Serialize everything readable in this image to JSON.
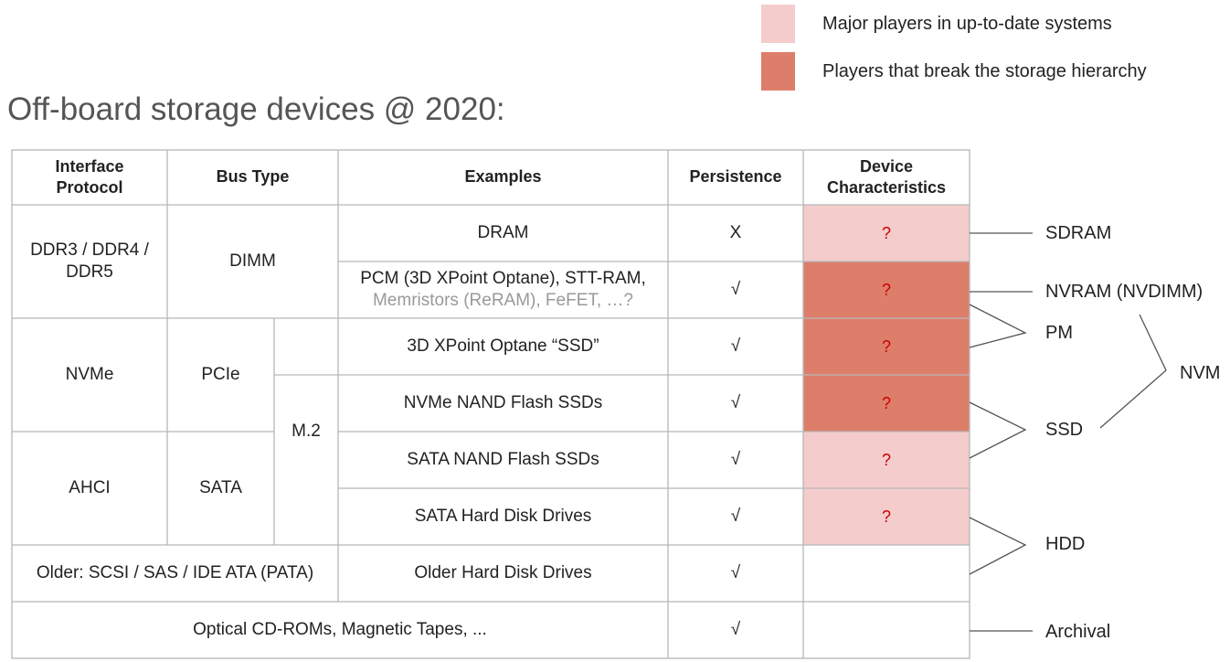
{
  "legend": {
    "items": [
      {
        "label": "Major players in up-to-date systems",
        "color": "#f4cccc"
      },
      {
        "label": "Players that break the storage hierarchy",
        "color": "#dd7e6b"
      }
    ]
  },
  "title": "Off-board storage devices @ 2020:",
  "table": {
    "headers": {
      "interface": "Interface Protocol",
      "bus": "Bus Type",
      "examples": "Examples",
      "persistence": "Persistence",
      "device": "Device Characteristics"
    },
    "interface": {
      "ddr": "DDR3 / DDR4 / DDR5",
      "nvme": "NVMe",
      "ahci": "AHCI",
      "older": "Older: SCSI / SAS / IDE ATA (PATA)"
    },
    "bus": {
      "dimm": "DIMM",
      "pcie": "PCIe",
      "sata": "SATA",
      "m2": "M.2"
    },
    "examples": {
      "dram": "DRAM",
      "pcm_line1": "PCM (3D XPoint Optane), STT-RAM,",
      "pcm_line2": "Memristors (ReRAM), FeFET, …?",
      "optane_ssd": "3D XPoint Optane “SSD”",
      "nvme_ssd": "NVMe NAND Flash SSDs",
      "sata_ssd": "SATA NAND Flash SSDs",
      "sata_hdd": "SATA Hard Disk Drives",
      "older_hdd": "Older Hard Disk Drives",
      "optical": "Optical CD-ROMs, Magnetic Tapes, ..."
    },
    "persistence": {
      "dram": "X",
      "pcm": "√",
      "optane_ssd": "√",
      "nvme_ssd": "√",
      "sata_ssd": "√",
      "sata_hdd": "√",
      "older_hdd": "√",
      "optical": "√"
    },
    "device": {
      "dram": "?",
      "pcm": "?",
      "optane_ssd": "?",
      "nvme_ssd": "?",
      "sata_ssd": "?",
      "sata_hdd": "?"
    }
  },
  "labels": {
    "sdram": "SDRAM",
    "nvram": "NVRAM (NVDIMM)",
    "pm": "PM",
    "ssd": "SSD",
    "nvm": "NVM",
    "hdd": "HDD",
    "archival": "Archival"
  },
  "colors": {
    "light": "#f4cccc",
    "dark": "#dd7e6b",
    "border": "#b7b7b7",
    "question": "#cc0000"
  }
}
